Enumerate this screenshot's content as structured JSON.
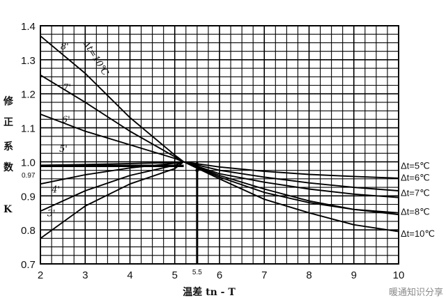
{
  "chart_data": {
    "type": "line",
    "title": "",
    "xlabel": "温差 tn - T",
    "ylabel_chars": [
      "修",
      "正",
      "系",
      "数",
      "K"
    ],
    "xlim": [
      2,
      10
    ],
    "ylim": [
      0.7,
      1.4
    ],
    "x_ticks": [
      "2",
      "3",
      "4",
      "5",
      "6",
      "7",
      "8",
      "9",
      "10"
    ],
    "y_ticks": [
      "1.4",
      "1.3",
      "1.2",
      "1.1",
      "1.0",
      "0.9",
      "0.8",
      "0.7"
    ],
    "grid": true,
    "extra_x_tick": "5.5",
    "extra_y_tick": "0.97",
    "reference_point": {
      "x": 5.5,
      "y": 0.97
    },
    "series": [
      {
        "name": "Δt=5℃",
        "inline_label": "5'",
        "x": [
          2,
          3,
          4,
          5,
          5.2,
          6,
          7,
          8,
          9,
          10
        ],
        "y": [
          0.99,
          0.992,
          0.995,
          0.998,
          1.0,
          0.985,
          0.972,
          0.963,
          0.957,
          0.952
        ]
      },
      {
        "name": "Δt=6℃",
        "inline_label": "4'",
        "x": [
          2,
          3,
          4,
          5,
          5.2,
          6,
          7,
          8,
          9,
          10
        ],
        "y": [
          0.935,
          0.962,
          0.982,
          0.996,
          1.0,
          0.975,
          0.955,
          0.938,
          0.925,
          0.915
        ]
      },
      {
        "name": "Δt=7℃",
        "inline_label": "6'",
        "x": [
          2,
          3,
          4,
          5,
          5.2,
          6,
          7,
          8,
          9,
          10
        ],
        "y": [
          1.14,
          1.09,
          1.05,
          1.01,
          1.0,
          0.965,
          0.94,
          0.92,
          0.905,
          0.895
        ]
      },
      {
        "name": "Δt=8℃",
        "inline_label": "3'",
        "x": [
          2,
          3,
          4,
          5,
          5.2,
          6,
          7,
          8,
          9,
          10
        ],
        "y": [
          0.855,
          0.915,
          0.96,
          0.99,
          1.0,
          0.955,
          0.91,
          0.88,
          0.86,
          0.85
        ]
      },
      {
        "name": "Δt=10℃",
        "inline_label": "8'",
        "x": [
          2,
          3,
          4,
          5,
          5.2,
          6,
          7,
          8,
          9,
          10
        ],
        "y": [
          1.37,
          1.26,
          1.13,
          1.02,
          1.0,
          0.95,
          0.89,
          0.85,
          0.815,
          0.795
        ]
      },
      {
        "name": "",
        "inline_label": "7'",
        "x": [
          2,
          3,
          4,
          5,
          5.2,
          6,
          7,
          8,
          9,
          10
        ],
        "y": [
          1.255,
          1.175,
          1.09,
          1.015,
          1.0,
          0.96,
          0.92,
          0.885,
          0.86,
          0.845
        ]
      },
      {
        "name": "",
        "inline_label": "",
        "x": [
          2,
          3,
          4,
          5,
          5.2
        ],
        "y": [
          0.775,
          0.87,
          0.935,
          0.98,
          1.0
        ]
      }
    ],
    "diagonal_label": "Δt=10℃"
  },
  "watermark": "暖通知识分享"
}
